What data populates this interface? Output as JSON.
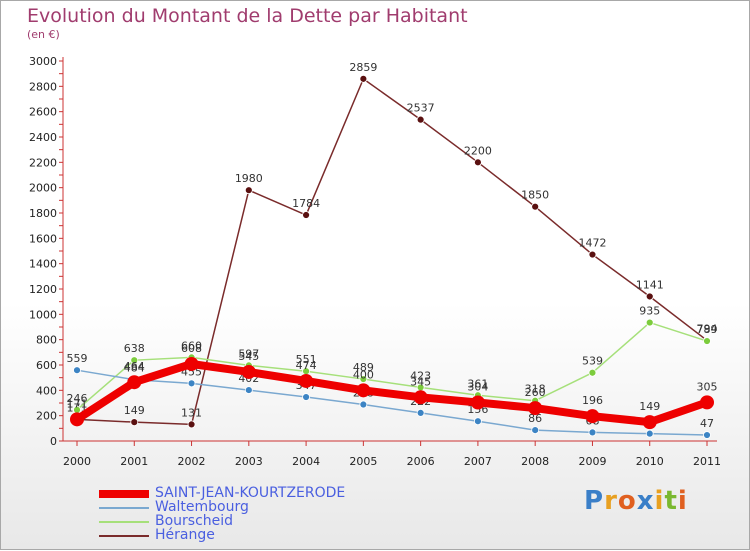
{
  "title": "Evolution du Montant de la Dette par Habitant",
  "subtitle": "(en €)",
  "logo_text": "Proxiti",
  "chart_data": {
    "type": "line",
    "title": "Evolution du Montant de la Dette par Habitant",
    "ylabel": "(en €)",
    "xlabel": "",
    "categories": [
      "2000",
      "2001",
      "2002",
      "2003",
      "2004",
      "2005",
      "2006",
      "2007",
      "2008",
      "2009",
      "2010",
      "2011"
    ],
    "ylim": [
      0,
      3000
    ],
    "yticks": [
      0,
      200,
      400,
      600,
      800,
      1000,
      1200,
      1400,
      1600,
      1800,
      2000,
      2200,
      2400,
      2600,
      2800,
      3000
    ],
    "grid": false,
    "legend_position": "bottom-left",
    "series": [
      {
        "name": "Hérange",
        "color": "#7a2b2b",
        "marker_color": "#5a1010",
        "values": [
          171,
          149,
          131,
          1980,
          1784,
          2859,
          2537,
          2200,
          1850,
          1472,
          1141,
          794
        ]
      },
      {
        "name": "Bourscheid",
        "color": "#a6e07a",
        "marker_color": "#7ccc3c",
        "values": [
          246,
          638,
          660,
          597,
          551,
          489,
          423,
          361,
          318,
          539,
          935,
          789
        ]
      },
      {
        "name": "Waltembourg",
        "color": "#7aa8d0",
        "marker_color": "#3c84c4",
        "values": [
          559,
          484,
          455,
          402,
          347,
          288,
          222,
          156,
          86,
          68,
          58,
          47
        ]
      },
      {
        "name": "SAINT-JEAN-KOURTZERODE",
        "color": "#ee0000",
        "marker_color": "#ee0000",
        "values": [
          171,
          464,
          608,
          545,
          474,
          400,
          345,
          304,
          260,
          196,
          149,
          305
        ]
      }
    ]
  }
}
